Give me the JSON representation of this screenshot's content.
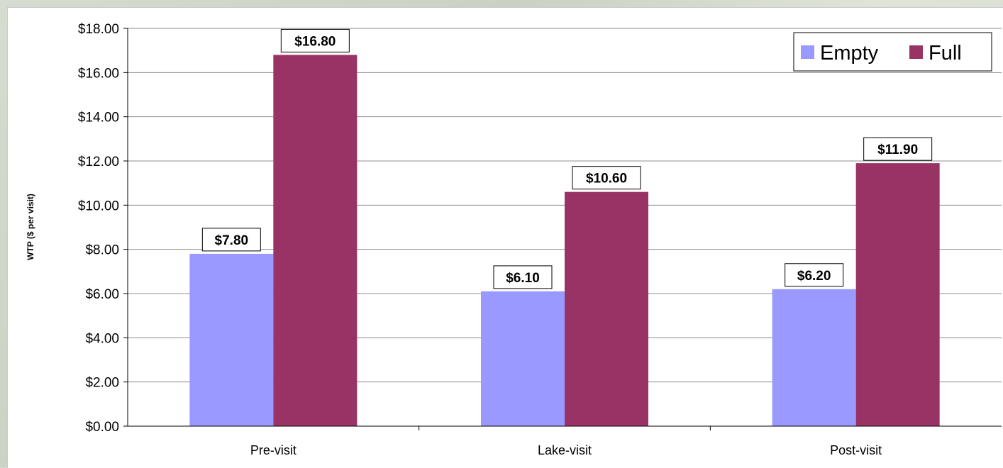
{
  "chart_data": {
    "type": "bar",
    "categories": [
      "Pre-visit",
      "Lake-visit",
      "Post-visit"
    ],
    "series": [
      {
        "name": "Empty",
        "values": [
          7.8,
          6.1,
          6.2
        ],
        "labels": [
          "$7.80",
          "$6.10",
          "$6.20"
        ],
        "color": "#9999ff"
      },
      {
        "name": "Full",
        "values": [
          16.8,
          10.6,
          11.9
        ],
        "labels": [
          "$16.80",
          "$10.60",
          "$11.90"
        ],
        "color": "#993366"
      }
    ],
    "title": "",
    "xlabel": "",
    "ylabel": "WTP ($ per visit)",
    "ylim": [
      0,
      18
    ],
    "yticks": [
      0,
      2,
      4,
      6,
      8,
      10,
      12,
      14,
      16,
      18
    ],
    "ytick_labels": [
      "$0.00",
      "$2.00",
      "$4.00",
      "$6.00",
      "$8.00",
      "$10.00",
      "$12.00",
      "$14.00",
      "$16.00",
      "$18.00"
    ],
    "grid": true,
    "legend_position": "top-right"
  }
}
